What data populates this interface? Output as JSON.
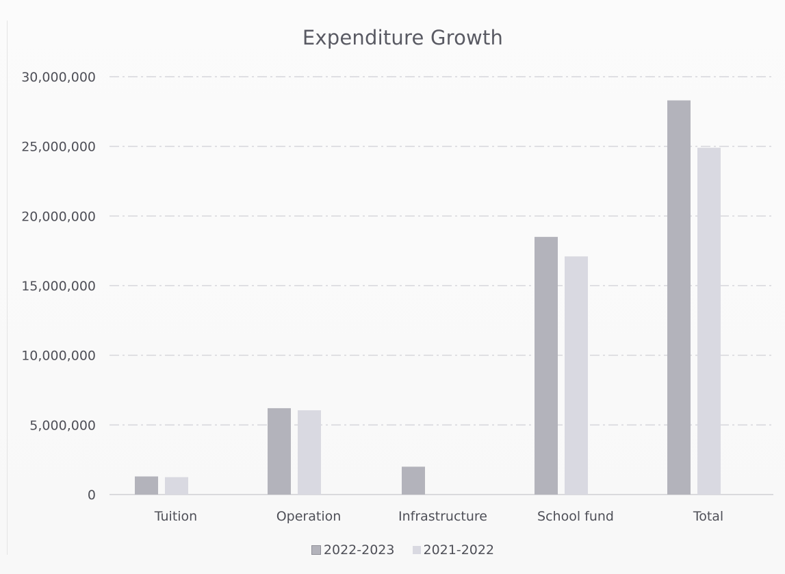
{
  "chart_data": {
    "type": "bar",
    "title": "Expenditure Growth",
    "categories": [
      "Tuition",
      "Operation",
      "Infrastructure",
      "School fund",
      "Total"
    ],
    "series": [
      {
        "name": "2022-2023",
        "values": [
          1300000,
          6200000,
          2000000,
          18500000,
          28300000
        ],
        "color": "#b3b3bb"
      },
      {
        "name": "2021-2022",
        "values": [
          1250000,
          6050000,
          0,
          17100000,
          24900000
        ],
        "color": "#d9d9e1"
      }
    ],
    "ylim": [
      0,
      30000000
    ],
    "yticks": [
      "0",
      "5,000,000",
      "10,000,000",
      "15,000,000",
      "20,000,000",
      "25,000,000",
      "30,000,000"
    ],
    "ytick_values": [
      0,
      5000000,
      10000000,
      15000000,
      20000000,
      25000000,
      30000000
    ],
    "grid": true,
    "legend_position": "bottom",
    "xlabel": "",
    "ylabel": ""
  }
}
